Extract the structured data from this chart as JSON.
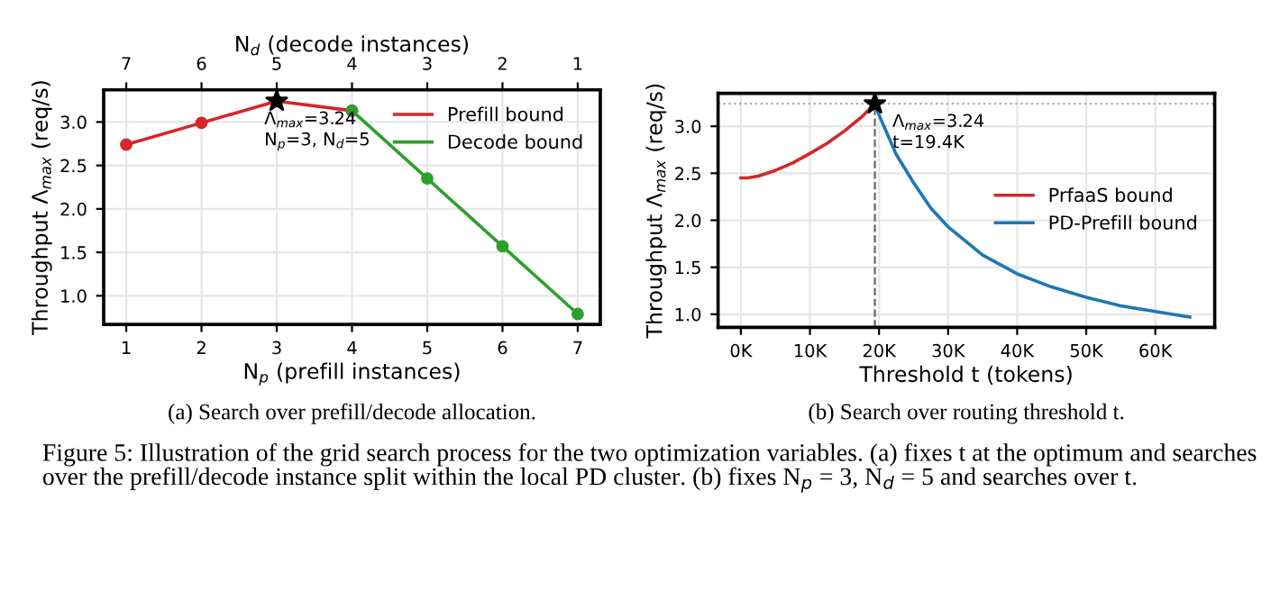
{
  "chart_data": [
    {
      "type": "line",
      "xlabel": "N$_{p}$ (prefill instances)",
      "x2label": "N$_{d}$ (decode instances)",
      "ylabel": "Throughput Λ$_{max}$ (req/s)",
      "xlim": [
        0.7,
        7.3
      ],
      "xticks": [
        1,
        2,
        3,
        4,
        5,
        6,
        7
      ],
      "x2lim": [
        7.3,
        0.7
      ],
      "x2ticks": [
        7,
        6,
        5,
        4,
        3,
        2,
        1
      ],
      "ylim": [
        0.67,
        3.37
      ],
      "yticks": [
        {
          "value": 1,
          "label": "1.0"
        },
        {
          "value": 1.5,
          "label": "1.5"
        },
        {
          "value": 2,
          "label": "2.0"
        },
        {
          "value": 2.5,
          "label": "2.5"
        },
        {
          "value": 3,
          "label": "3.0"
        }
      ],
      "grid": true,
      "legend": "top right",
      "series": [
        {
          "name": "Prefill bound",
          "color": "#d62728",
          "marker": "circle",
          "x": [
            1,
            2,
            3,
            4
          ],
          "values": [
            2.74,
            2.99,
            3.24,
            3.13
          ]
        },
        {
          "name": "Decode bound",
          "color": "#2ca02c",
          "marker": "circle",
          "x": [
            4,
            5,
            6,
            7
          ],
          "values": [
            3.13,
            2.35,
            1.57,
            0.79
          ]
        },
        {
          "type": "scatter",
          "color": "#000000",
          "marker": "star",
          "x": [
            3
          ],
          "values": [
            3.24
          ],
          "value_labels": [
            "Λ$_{max}$=3.24\nN$_{p}$=3, N$_{d}$=5"
          ]
        }
      ],
      "annotations": [
        "(a) Search over prefill/decode allocation."
      ]
    },
    {
      "type": "line",
      "xlabel": "Threshold t (tokens)",
      "ylabel": "Throughput Λ$_{max}$ (req/s)",
      "xlim": [
        -3300,
        68600
      ],
      "xticks": [
        {
          "value": 0,
          "label": "0K"
        },
        {
          "value": 10000,
          "label": "10K"
        },
        {
          "value": 20000,
          "label": "20K"
        },
        {
          "value": 30000,
          "label": "30K"
        },
        {
          "value": 40000,
          "label": "40K"
        },
        {
          "value": 50000,
          "label": "50K"
        },
        {
          "value": 60000,
          "label": "60K"
        }
      ],
      "ylim": [
        0.86,
        3.35
      ],
      "yticks": [
        {
          "value": 1,
          "label": "1.0"
        },
        {
          "value": 1.5,
          "label": "1.5"
        },
        {
          "value": 2,
          "label": "2.0"
        },
        {
          "value": 2.5,
          "label": "2.5"
        },
        {
          "value": 3,
          "label": "3.0"
        }
      ],
      "grid": true,
      "legend": "right",
      "series": [
        {
          "name": "PrfaaS bound",
          "color": "#d62728",
          "marker": "none",
          "x": [
            0,
            1000,
            2500,
            5000,
            7500,
            10000,
            12500,
            15000,
            17500,
            19400
          ],
          "values": [
            2.45,
            2.45,
            2.47,
            2.53,
            2.61,
            2.71,
            2.82,
            2.95,
            3.1,
            3.24
          ]
        },
        {
          "name": "PD-Prefill bound",
          "color": "#1f77b4",
          "marker": "none",
          "x": [
            19400,
            20000,
            22500,
            25000,
            27500,
            30000,
            35000,
            40000,
            45000,
            50000,
            55000,
            60000,
            65000
          ],
          "values": [
            3.24,
            3.12,
            2.7,
            2.4,
            2.13,
            1.93,
            1.63,
            1.43,
            1.29,
            1.18,
            1.09,
            1.03,
            0.97
          ]
        },
        {
          "type": "scatter",
          "color": "#000000",
          "marker": "star",
          "x": [
            19400
          ],
          "values": [
            3.24
          ],
          "value_labels": [
            "Λ$_{max}$=3.24\nt=19.4K"
          ]
        }
      ],
      "ref_lines": [
        {
          "axis": "y",
          "value": 3.24,
          "color": "#aaaaaa",
          "line_style": "dotted"
        },
        {
          "axis": "x",
          "value": 19400,
          "color": "#666666",
          "line_style": "dashed"
        }
      ],
      "annotations": [
        "(b) Search over routing threshold t.",
        "Figure 5: Illustration of the grid search process for the two optimization variables. (a) fixes t at the optimum and searches over the prefill/decode instance split within the local PD cluster. (b) fixes N$_{p}$ = 3, N$_{d}$ = 5 and searches over t."
      ]
    }
  ]
}
